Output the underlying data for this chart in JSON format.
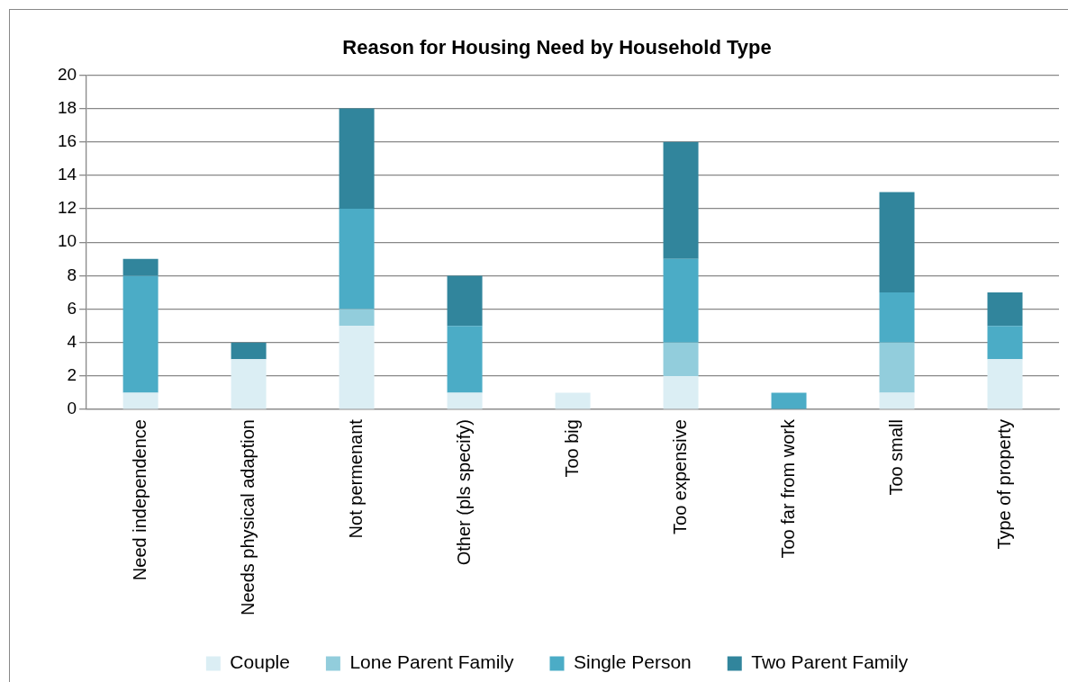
{
  "chart_data": {
    "type": "bar",
    "title": "Reason for Housing Need by Household Type",
    "stacked": true,
    "grid": "y",
    "legend": "bottom",
    "categories": [
      "Need independence",
      "Needs physical adaption",
      "Not permenant",
      "Other (pls specify)",
      "Too big",
      "Too expensive",
      "Too far from work",
      "Too small",
      "Type of property"
    ],
    "ylim": [
      0,
      20
    ],
    "yticks": [
      0,
      2,
      4,
      6,
      8,
      10,
      12,
      14,
      16,
      18,
      20
    ],
    "series": [
      {
        "name": "Couple",
        "color": "#dbeef4",
        "values": [
          1,
          3,
          5,
          1,
          1,
          2,
          0,
          1,
          3
        ]
      },
      {
        "name": "Lone Parent Family",
        "color": "#92cddc",
        "values": [
          0,
          0,
          1,
          0,
          0,
          2,
          0,
          3,
          0
        ]
      },
      {
        "name": "Single Person",
        "color": "#4bacc6",
        "values": [
          7,
          0,
          6,
          4,
          0,
          5,
          1,
          3,
          2
        ]
      },
      {
        "name": "Two Parent Family",
        "color": "#31859c",
        "values": [
          1,
          1,
          6,
          3,
          0,
          7,
          0,
          6,
          2
        ]
      }
    ]
  }
}
